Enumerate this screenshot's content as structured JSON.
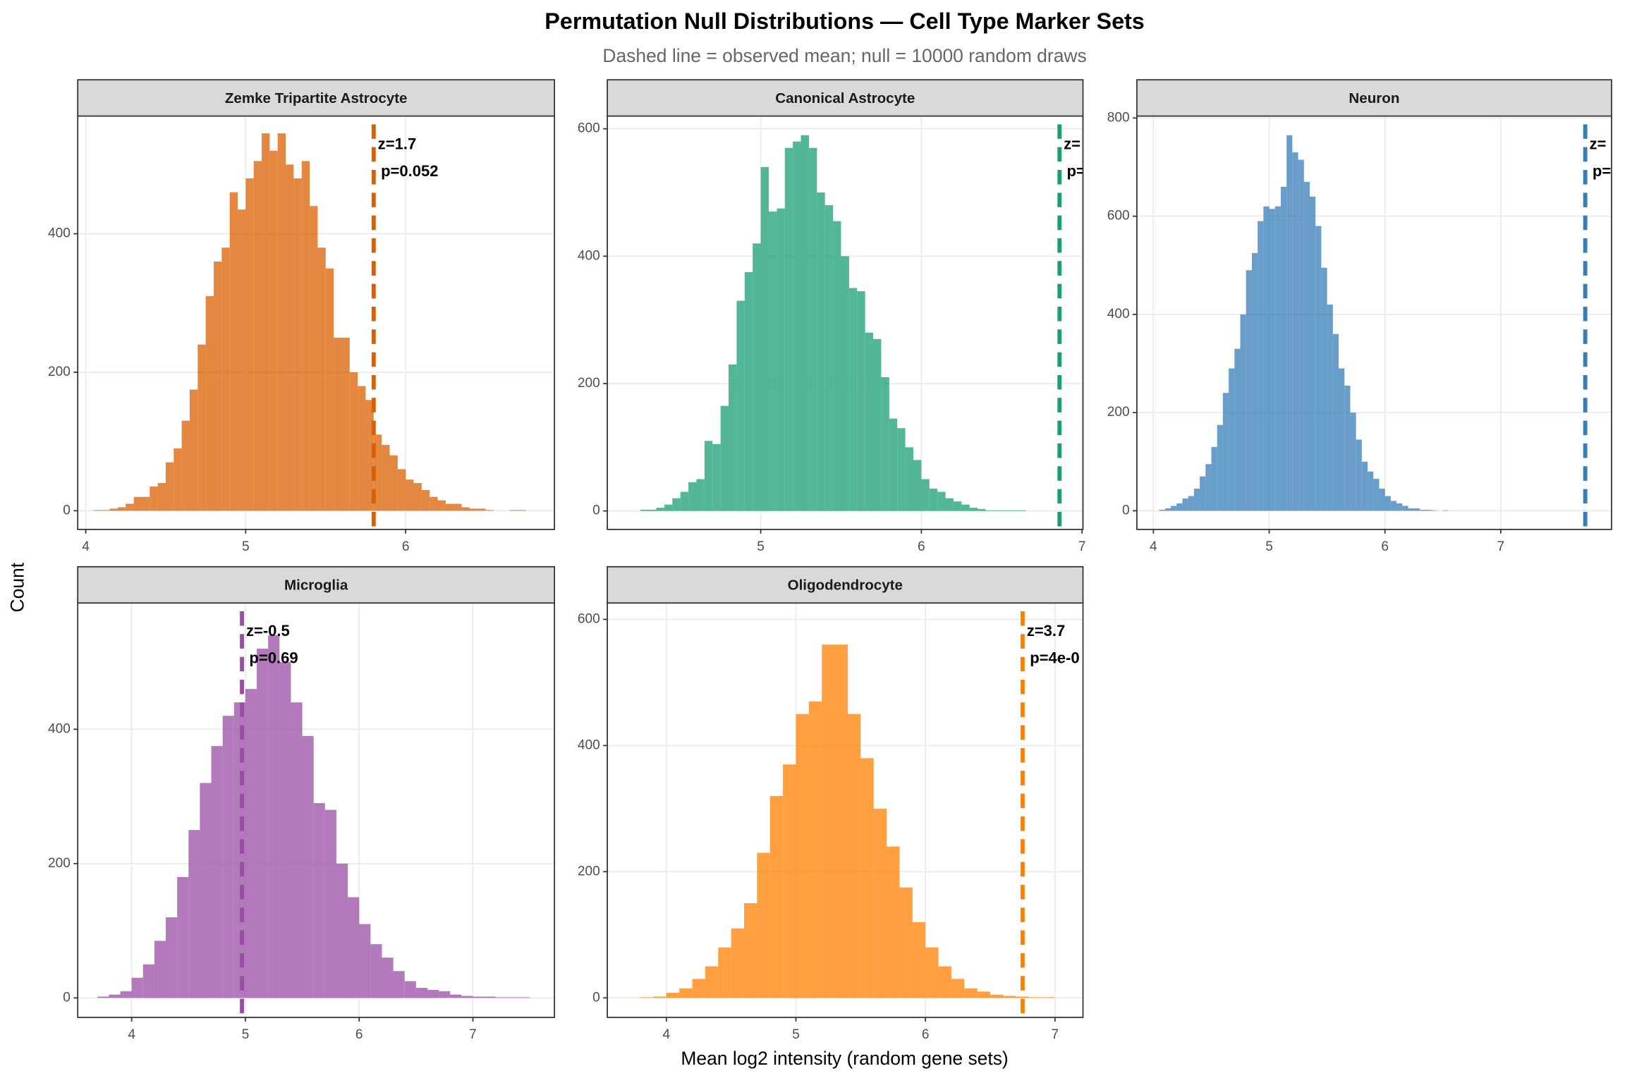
{
  "title": "Permutation Null Distributions — Cell Type Marker Sets",
  "subtitle": "Dashed line = observed mean; null = 10000 random draws",
  "x_label": "Mean log2 intensity (random gene sets)",
  "y_label": "Count",
  "chart_data": [
    {
      "type": "histogram",
      "title": "Zemke Tripartite Astrocyte",
      "color": "#d95f02",
      "bins": [
        4.05,
        4.1,
        4.15,
        4.2,
        4.25,
        4.3,
        4.35,
        4.4,
        4.45,
        4.5,
        4.55,
        4.6,
        4.65,
        4.7,
        4.75,
        4.8,
        4.85,
        4.9,
        4.95,
        5.0,
        5.05,
        5.1,
        5.15,
        5.2,
        5.25,
        5.3,
        5.35,
        5.4,
        5.45,
        5.5,
        5.55,
        5.6,
        5.65,
        5.7,
        5.75,
        5.8,
        5.85,
        5.9,
        5.95,
        6.0,
        6.05,
        6.1,
        6.15,
        6.2,
        6.25,
        6.3,
        6.35,
        6.4,
        6.45,
        6.5,
        6.55,
        6.6,
        6.65,
        6.7,
        6.75
      ],
      "values": [
        1,
        1,
        3,
        5,
        10,
        20,
        20,
        35,
        40,
        70,
        90,
        130,
        175,
        240,
        310,
        360,
        380,
        460,
        435,
        480,
        505,
        545,
        520,
        545,
        500,
        480,
        505,
        440,
        380,
        350,
        250,
        250,
        200,
        180,
        160,
        110,
        95,
        80,
        60,
        45,
        40,
        30,
        20,
        15,
        10,
        10,
        5,
        3,
        3,
        1,
        0,
        0,
        1,
        1
      ],
      "observed_mean": 5.8,
      "annotations": [
        "z=1.7",
        "p=0.052"
      ],
      "xlim": [
        3.95,
        6.93
      ],
      "ylim": [
        -27,
        570
      ],
      "xticks": [
        4,
        5,
        6
      ],
      "yticks": [
        0,
        200,
        400
      ],
      "grid": true
    },
    {
      "type": "histogram",
      "title": "Canonical Astrocyte",
      "color": "#1b9e77",
      "bins": [
        4.25,
        4.3,
        4.35,
        4.4,
        4.45,
        4.5,
        4.55,
        4.6,
        4.65,
        4.7,
        4.75,
        4.8,
        4.85,
        4.9,
        4.95,
        5.0,
        5.05,
        5.1,
        5.15,
        5.2,
        5.25,
        5.3,
        5.35,
        5.4,
        5.45,
        5.5,
        5.55,
        5.6,
        5.65,
        5.7,
        5.75,
        5.8,
        5.85,
        5.9,
        5.95,
        6.0,
        6.05,
        6.1,
        6.15,
        6.2,
        6.25,
        6.3,
        6.35,
        6.4,
        6.45,
        6.5,
        6.55,
        6.6,
        6.65
      ],
      "values": [
        2,
        2,
        5,
        10,
        20,
        30,
        45,
        50,
        110,
        105,
        165,
        230,
        330,
        375,
        420,
        540,
        470,
        475,
        570,
        580,
        590,
        570,
        500,
        480,
        455,
        400,
        350,
        345,
        280,
        270,
        210,
        145,
        130,
        100,
        80,
        50,
        35,
        30,
        20,
        15,
        10,
        5,
        3,
        1,
        1,
        1,
        1,
        1
      ],
      "observed_mean": 6.86,
      "annotations": [
        "z=",
        "p="
      ],
      "xlim": [
        4.045,
        7.006
      ],
      "ylim": [
        -29,
        620
      ],
      "xticks": [
        5,
        6,
        7
      ],
      "yticks": [
        0,
        200,
        400,
        600
      ],
      "grid": true
    },
    {
      "type": "histogram",
      "title": "Neuron",
      "color": "#377eb8",
      "bins": [
        4.05,
        4.1,
        4.15,
        4.2,
        4.25,
        4.3,
        4.35,
        4.4,
        4.45,
        4.5,
        4.55,
        4.6,
        4.65,
        4.7,
        4.75,
        4.8,
        4.85,
        4.9,
        4.95,
        5.0,
        5.05,
        5.1,
        5.15,
        5.2,
        5.25,
        5.3,
        5.35,
        5.4,
        5.45,
        5.5,
        5.55,
        5.6,
        5.65,
        5.7,
        5.75,
        5.8,
        5.85,
        5.9,
        5.95,
        6.0,
        6.05,
        6.1,
        6.15,
        6.2,
        6.25,
        6.3,
        6.35,
        6.4,
        6.45,
        6.5,
        6.55
      ],
      "values": [
        2,
        5,
        10,
        15,
        25,
        30,
        45,
        70,
        95,
        130,
        175,
        240,
        290,
        330,
        400,
        490,
        525,
        590,
        620,
        615,
        620,
        660,
        765,
        730,
        715,
        670,
        640,
        580,
        495,
        420,
        360,
        290,
        255,
        200,
        145,
        100,
        80,
        65,
        45,
        30,
        20,
        15,
        10,
        5,
        5,
        2,
        2,
        1,
        0,
        1
      ],
      "observed_mean": 7.73,
      "annotations": [
        "z=",
        "p="
      ],
      "xlim": [
        3.857,
        7.957
      ],
      "ylim": [
        -38,
        804
      ],
      "xticks": [
        4,
        5,
        6,
        7
      ],
      "yticks": [
        0,
        200,
        400,
        600,
        800
      ],
      "grid": true
    },
    {
      "type": "histogram",
      "title": "Microglia",
      "color": "#984ea3",
      "bins": [
        3.7,
        3.8,
        3.9,
        4.0,
        4.1,
        4.2,
        4.3,
        4.4,
        4.5,
        4.6,
        4.7,
        4.8,
        4.9,
        5.0,
        5.1,
        5.2,
        5.3,
        5.4,
        5.5,
        5.6,
        5.7,
        5.8,
        5.9,
        6.0,
        6.1,
        6.2,
        6.3,
        6.4,
        6.5,
        6.6,
        6.7,
        6.8,
        6.9,
        7.0,
        7.1,
        7.2,
        7.3,
        7.4,
        7.5
      ],
      "values": [
        2,
        5,
        10,
        30,
        50,
        85,
        120,
        180,
        250,
        320,
        375,
        420,
        440,
        460,
        520,
        540,
        500,
        440,
        390,
        290,
        280,
        200,
        150,
        110,
        80,
        60,
        40,
        25,
        15,
        12,
        10,
        5,
        3,
        2,
        2,
        1,
        1,
        1
      ],
      "observed_mean": 4.97,
      "annotations": [
        "z=-0.5",
        "p=0.69"
      ],
      "xlim": [
        3.526,
        7.717
      ],
      "ylim": [
        -29,
        588
      ],
      "xticks": [
        4,
        5,
        6,
        7
      ],
      "yticks": [
        0,
        200,
        400
      ],
      "grid": true
    },
    {
      "type": "histogram",
      "title": "Oligodendrocyte",
      "color": "#ff7f00",
      "bins": [
        3.8,
        3.9,
        4.0,
        4.1,
        4.2,
        4.3,
        4.4,
        4.5,
        4.6,
        4.7,
        4.8,
        4.9,
        5.0,
        5.1,
        5.2,
        5.3,
        5.4,
        5.5,
        5.6,
        5.7,
        5.8,
        5.9,
        6.0,
        6.1,
        6.2,
        6.3,
        6.4,
        6.5,
        6.6,
        6.7,
        6.8,
        6.9,
        7.0
      ],
      "values": [
        1,
        2,
        8,
        15,
        30,
        50,
        80,
        110,
        150,
        230,
        320,
        370,
        450,
        470,
        560,
        560,
        450,
        380,
        300,
        240,
        175,
        120,
        80,
        50,
        30,
        15,
        10,
        5,
        3,
        2,
        1,
        1
      ],
      "observed_mean": 6.75,
      "annotations": [
        "z=3.7",
        "p=4e-0"
      ],
      "xlim": [
        3.544,
        7.216
      ],
      "ylim": [
        -31,
        626
      ],
      "xticks": [
        4,
        5,
        6,
        7
      ],
      "yticks": [
        0,
        200,
        400,
        600
      ],
      "grid": true
    }
  ]
}
